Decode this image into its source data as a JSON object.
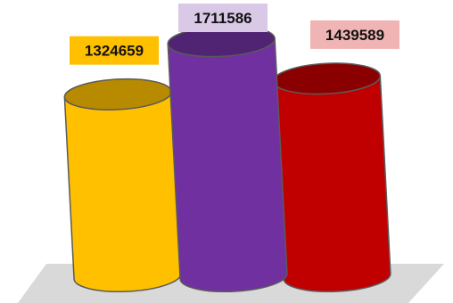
{
  "chart_data": {
    "type": "bar",
    "style": "3d-cylinder",
    "categories": [
      "",
      "",
      ""
    ],
    "values": [
      1324659,
      1711586,
      1439589
    ],
    "data_labels": [
      "1324659",
      "1711586",
      "1439589"
    ],
    "colors": [
      "#ffc000",
      "#7030a0",
      "#c00000"
    ],
    "label_backgrounds": [
      "#ffc000",
      "#d9c8e6",
      "#f0b4b4"
    ],
    "ylim": [
      0,
      1750000
    ],
    "grid": false,
    "legend": "none",
    "floor_color": "#d9d9d9"
  }
}
